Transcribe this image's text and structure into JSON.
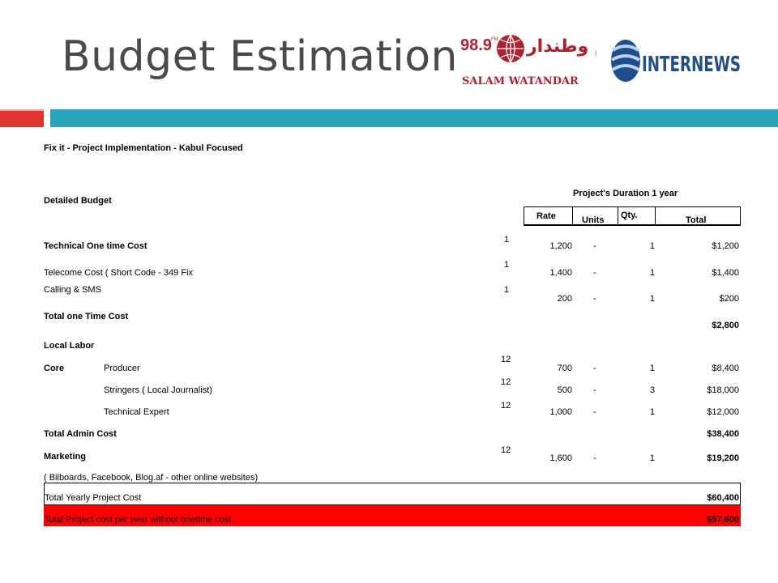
{
  "slide": {
    "title": "Budget Estimation"
  },
  "logos": {
    "salam_watandar": {
      "freq": "98.9",
      "freq_sup": "FM",
      "arabic": "سلام وطندار",
      "latin": "SALAM WATANDAR"
    },
    "internews": {
      "name": "INTERNEWS"
    }
  },
  "colors": {
    "accent_red": "#e0342f",
    "accent_teal": "#2aa3bd",
    "highlight_row": "#ff0000"
  },
  "budget": {
    "heading": "Fix it - Project Implementation - Kabul Focused",
    "detailed_label": "Detailed Budget",
    "duration_label": "Project's Duration 1 year",
    "columns": {
      "rate": "Rate",
      "units": "Units",
      "qty": "Qty.",
      "total": "Total"
    },
    "rows": [
      {
        "label": "Technical One time Cost",
        "n": "1",
        "rate": "1,200",
        "units": "-",
        "qty": "1",
        "total": "$1,200"
      },
      {
        "label": "Telecome Cost ( Short Code - 349 Fix",
        "n": "1",
        "rate": "1,400",
        "units": "-",
        "qty": "1",
        "total": "$1,400"
      },
      {
        "label": "Calling & SMS",
        "n": "1",
        "rate": "200",
        "units": "-",
        "qty": "1",
        "total": "$200"
      },
      {
        "label": "Total one Time Cost",
        "total": "$2,800"
      },
      {
        "label": "Local Labor"
      },
      {
        "category": "Core",
        "label": "Producer",
        "n": "12",
        "rate": "700",
        "units": "-",
        "qty": "1",
        "total": "$8,400"
      },
      {
        "label": "Stringers ( Local Journalist)",
        "n": "12",
        "rate": "500",
        "units": "-",
        "qty": "3",
        "total": "$18,000"
      },
      {
        "label": "Technical Expert",
        "n": "12",
        "rate": "1,000",
        "units": "-",
        "qty": "1",
        "total": "$12,000"
      },
      {
        "label": "Total Admin Cost",
        "total": "$38,400"
      },
      {
        "label": "Marketing",
        "n": "12",
        "rate": "1,600",
        "units": "-",
        "qty": "1",
        "total": "$19,200"
      },
      {
        "label": "( Bilboards, Facebook, Blog.af - other online websites)"
      },
      {
        "label": "Total Yearly Project Cost",
        "total": "$60,400"
      },
      {
        "label": "Total Project cost  per  year  without onetime cost",
        "total": "$57,600"
      }
    ]
  }
}
